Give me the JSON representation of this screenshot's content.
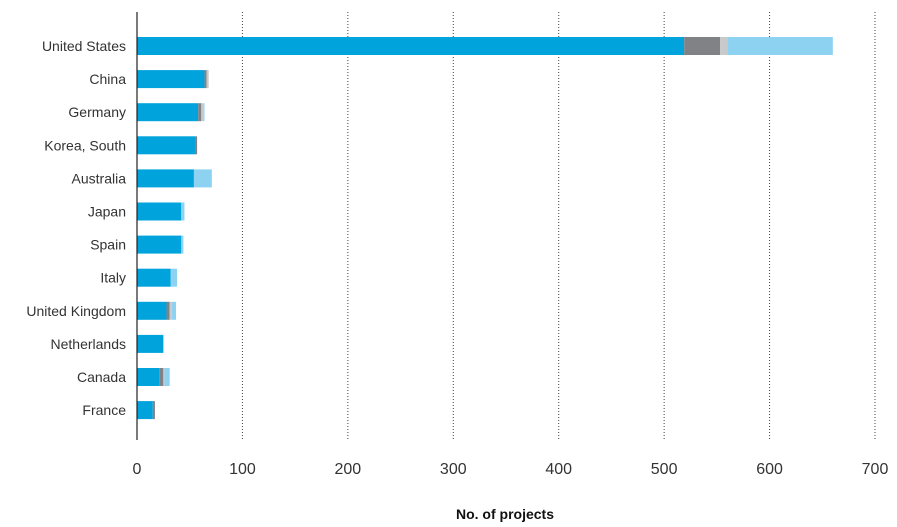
{
  "chart_data": {
    "type": "bar",
    "orientation": "horizontal",
    "stacked": true,
    "title": "",
    "xlabel": "No. of projects",
    "ylabel": "",
    "xlim": [
      0,
      700
    ],
    "xticks": [
      0,
      100,
      200,
      300,
      400,
      500,
      600,
      700
    ],
    "grid": "vertical dotted",
    "legend": "none",
    "categories": [
      "United States",
      "China",
      "Germany",
      "Korea, South",
      "Australia",
      "Japan",
      "Spain",
      "Italy",
      "United Kingdom",
      "Netherlands",
      "Canada",
      "France"
    ],
    "series": [
      {
        "color": "#00a3dc",
        "values": [
          519,
          64,
          58,
          55,
          54,
          42,
          42,
          32,
          28,
          25,
          21,
          15
        ]
      },
      {
        "color": "#808285",
        "values": [
          34,
          2,
          3,
          2,
          0,
          0,
          0,
          0,
          3,
          0,
          4,
          2
        ]
      },
      {
        "color": "#c8c9cb",
        "values": [
          7,
          2,
          2,
          0,
          0,
          0,
          0,
          0,
          2,
          0,
          1,
          0
        ]
      },
      {
        "color": "#8dd3f1",
        "values": [
          100,
          0,
          1,
          0,
          17,
          3,
          2,
          6,
          4,
          0,
          5,
          0
        ]
      }
    ]
  },
  "colors": {
    "axis": "#222222",
    "grid": "#444444",
    "text": "#333333"
  }
}
